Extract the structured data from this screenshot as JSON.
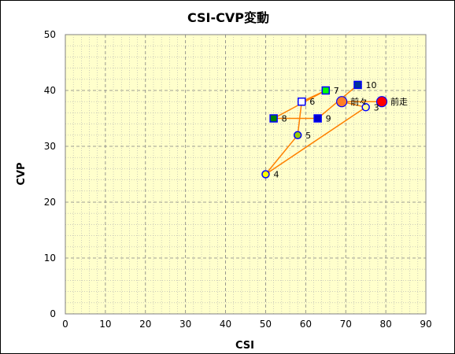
{
  "chart_data": {
    "type": "scatter",
    "title": "CSI-CVP変動",
    "xlabel": "CSI",
    "ylabel": "CVP",
    "xlim": [
      0,
      90
    ],
    "ylim": [
      0,
      50
    ],
    "xticks": [
      0,
      10,
      20,
      30,
      40,
      50,
      60,
      70,
      80,
      90
    ],
    "yticks": [
      0,
      10,
      20,
      30,
      40,
      50
    ],
    "grid": true,
    "plot_background": "#ffffcc",
    "line_color": "#ff8000",
    "points": [
      {
        "label": "前走",
        "x": 79,
        "y": 38,
        "marker": "circle-large",
        "fill": "#ff0000",
        "stroke": "#0000ff"
      },
      {
        "label": "前々",
        "x": 69,
        "y": 38,
        "marker": "circle-large",
        "fill": "#ff7f27",
        "stroke": "#0000ff"
      },
      {
        "label": "3",
        "x": 75,
        "y": 37,
        "marker": "circle",
        "fill": "#ffff99",
        "stroke": "#0000ff"
      },
      {
        "label": "4",
        "x": 50,
        "y": 25,
        "marker": "circle",
        "fill": "#ffff00",
        "stroke": "#0000ff"
      },
      {
        "label": "5",
        "x": 58,
        "y": 32,
        "marker": "circle",
        "fill": "#99cc00",
        "stroke": "#0000ff"
      },
      {
        "label": "6",
        "x": 59,
        "y": 38,
        "marker": "square",
        "fill": "#ffffff",
        "stroke": "#0000ff"
      },
      {
        "label": "7",
        "x": 65,
        "y": 40,
        "marker": "square",
        "fill": "#00ff00",
        "stroke": "#0000ff"
      },
      {
        "label": "8",
        "x": 52,
        "y": 35,
        "marker": "square",
        "fill": "#008000",
        "stroke": "#0000ff"
      },
      {
        "label": "9",
        "x": 63,
        "y": 35,
        "marker": "square",
        "fill": "#0000cc",
        "stroke": "#0000ff"
      },
      {
        "label": "10",
        "x": 73,
        "y": 41,
        "marker": "square",
        "fill": "#003399",
        "stroke": "#0000ff"
      }
    ]
  }
}
